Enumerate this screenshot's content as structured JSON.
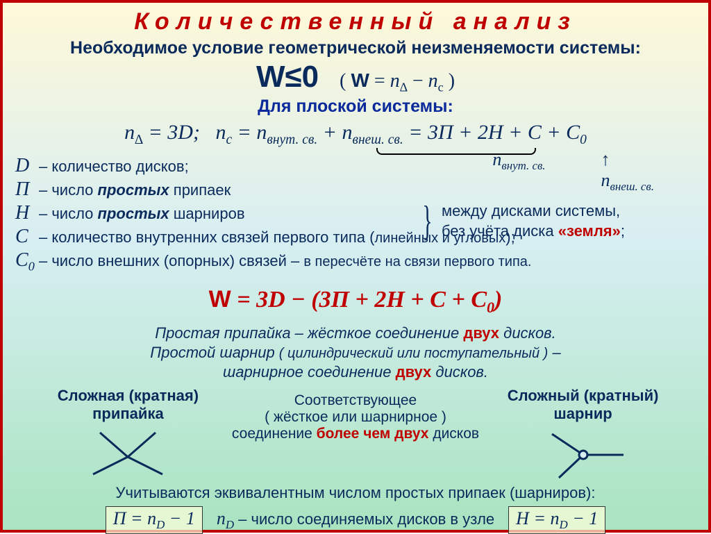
{
  "colors": {
    "title": "#c00000",
    "border": "#c00000",
    "text": "#0a2a5c",
    "blue": "#0a2a9c",
    "red": "#c00000",
    "gradTop": "#fef8d8",
    "gradBot": "#a9e4c0"
  },
  "title": "Количественный анализ",
  "subtitle": "Необходимое условие геометрической неизменяемости системы:",
  "formula_main": "W≤0",
  "formula_paren_pre": "( ",
  "formula_paren_w": "W",
  "formula_paren_rest": " = n∆ − nc )",
  "blue_heading": "Для плоской системы:",
  "line_formulas": {
    "nd": "n∆ = 3D;",
    "nc": "nc = nвнут. св. + nвнеш. св. = 3П + 2Н + С + С0"
  },
  "brace_labels": {
    "left": "nвнут. св.",
    "right": "nвнеш. св.",
    "arrow": "↑"
  },
  "defs": [
    {
      "sym": "D",
      "text": " – количество дисков;"
    },
    {
      "sym": "П",
      "text": " – число ",
      "bold": "простых",
      "text2": " припаек"
    },
    {
      "sym": "Н",
      "text": " – число ",
      "bold": "простых",
      "text2": " шарниров"
    },
    {
      "sym": "С",
      "text": " – количество внутренних связей первого типа (",
      "small": "линейных и угловых",
      "text2": ");"
    },
    {
      "sym": "С0",
      "text": " – число внешних (опорных) связей – ",
      "small": "в пересчёте на связи первого типа."
    }
  ],
  "bracket_note": {
    "line1": "между дисками системы,",
    "line2_pre": "без учёта диска ",
    "line2_red": "«земля»",
    "line2_post": ";"
  },
  "big_w_formula": "W = 3D − (3П + 2Н + С + С0)",
  "desc": {
    "l1_a": "Простая припайка – жёсткое соединение ",
    "l1_red": "двух",
    "l1_b": " дисков.",
    "l2_a": "Простой шарнир ",
    "l2_s": "( цилиндрический или поступательный )",
    "l2_b": " –",
    "l3_a": "шарнирное соединение ",
    "l3_red": "двух",
    "l3_b": " дисков."
  },
  "diag": {
    "left_label": "Сложная (кратная) припайка",
    "right_label": "Сложный (кратный) шарнир",
    "mid_l1": "Соответствующее",
    "mid_l2": "( жёсткое или шарнирное )",
    "mid_l3_a": "соединение ",
    "mid_l3_red": "более чем двух",
    "mid_l3_b": " дисков"
  },
  "bottom": "Учитываются эквивалентным числом простых припаек (шарниров):",
  "final": {
    "box1": "П = nD − 1",
    "mid_sym": "nD",
    "mid_text": " – число соединяемых дисков в узле",
    "box2": "H = nD − 1"
  }
}
